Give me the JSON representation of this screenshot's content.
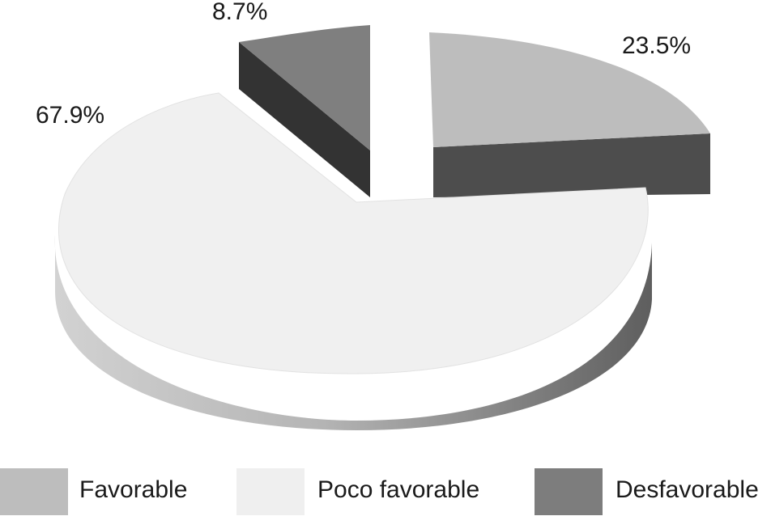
{
  "chart_data": {
    "type": "pie",
    "title": "",
    "labels": [
      "Favorable",
      "Poco favorable",
      "Desfavorable"
    ],
    "values": [
      23.5,
      67.9,
      8.7
    ],
    "value_labels": [
      "23.5%",
      "67.9%",
      "8.7%"
    ],
    "colors": [
      "#bdbdbd",
      "#efefef",
      "#7d7d7d"
    ],
    "side_colors": [
      "#4a4a4a",
      "#8a8a8a",
      "#3a3a3a"
    ],
    "style": "3d-exploded",
    "legend_position": "bottom"
  }
}
